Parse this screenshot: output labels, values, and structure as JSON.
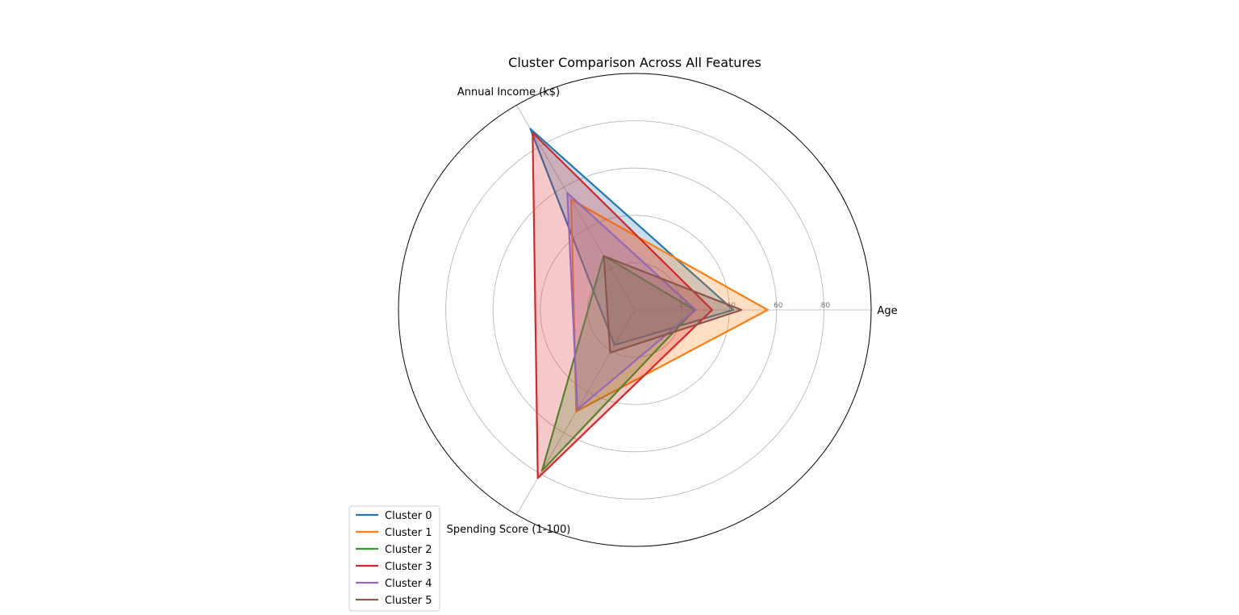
{
  "chart_data": {
    "type": "radar",
    "title": "Cluster Comparison Across All Features",
    "axes": [
      "Age",
      "Annual Income (k$)",
      "Spending Score (1-100)"
    ],
    "rlim": [
      0,
      100
    ],
    "rticks": [
      20,
      40,
      60,
      80
    ],
    "rtick_labels": [
      "20",
      "40",
      "60",
      "80"
    ],
    "grid": true,
    "legend_position": "lower-left",
    "series": [
      {
        "name": "Cluster 0",
        "color": "#1f77b4",
        "values": [
          41.7,
          88.4,
          17.2
        ]
      },
      {
        "name": "Cluster 1",
        "color": "#ff7f0e",
        "values": [
          56.2,
          53.9,
          49.5
        ]
      },
      {
        "name": "Cluster 2",
        "color": "#2ca02c",
        "values": [
          25.3,
          26.5,
          78.6
        ]
      },
      {
        "name": "Cluster 3",
        "color": "#d62728",
        "values": [
          32.7,
          86.5,
          82.1
        ]
      },
      {
        "name": "Cluster 4",
        "color": "#9467bd",
        "values": [
          25.7,
          57.1,
          48.6
        ]
      },
      {
        "name": "Cluster 5",
        "color": "#8c564b",
        "values": [
          45.2,
          26.3,
          20.9
        ]
      }
    ]
  }
}
